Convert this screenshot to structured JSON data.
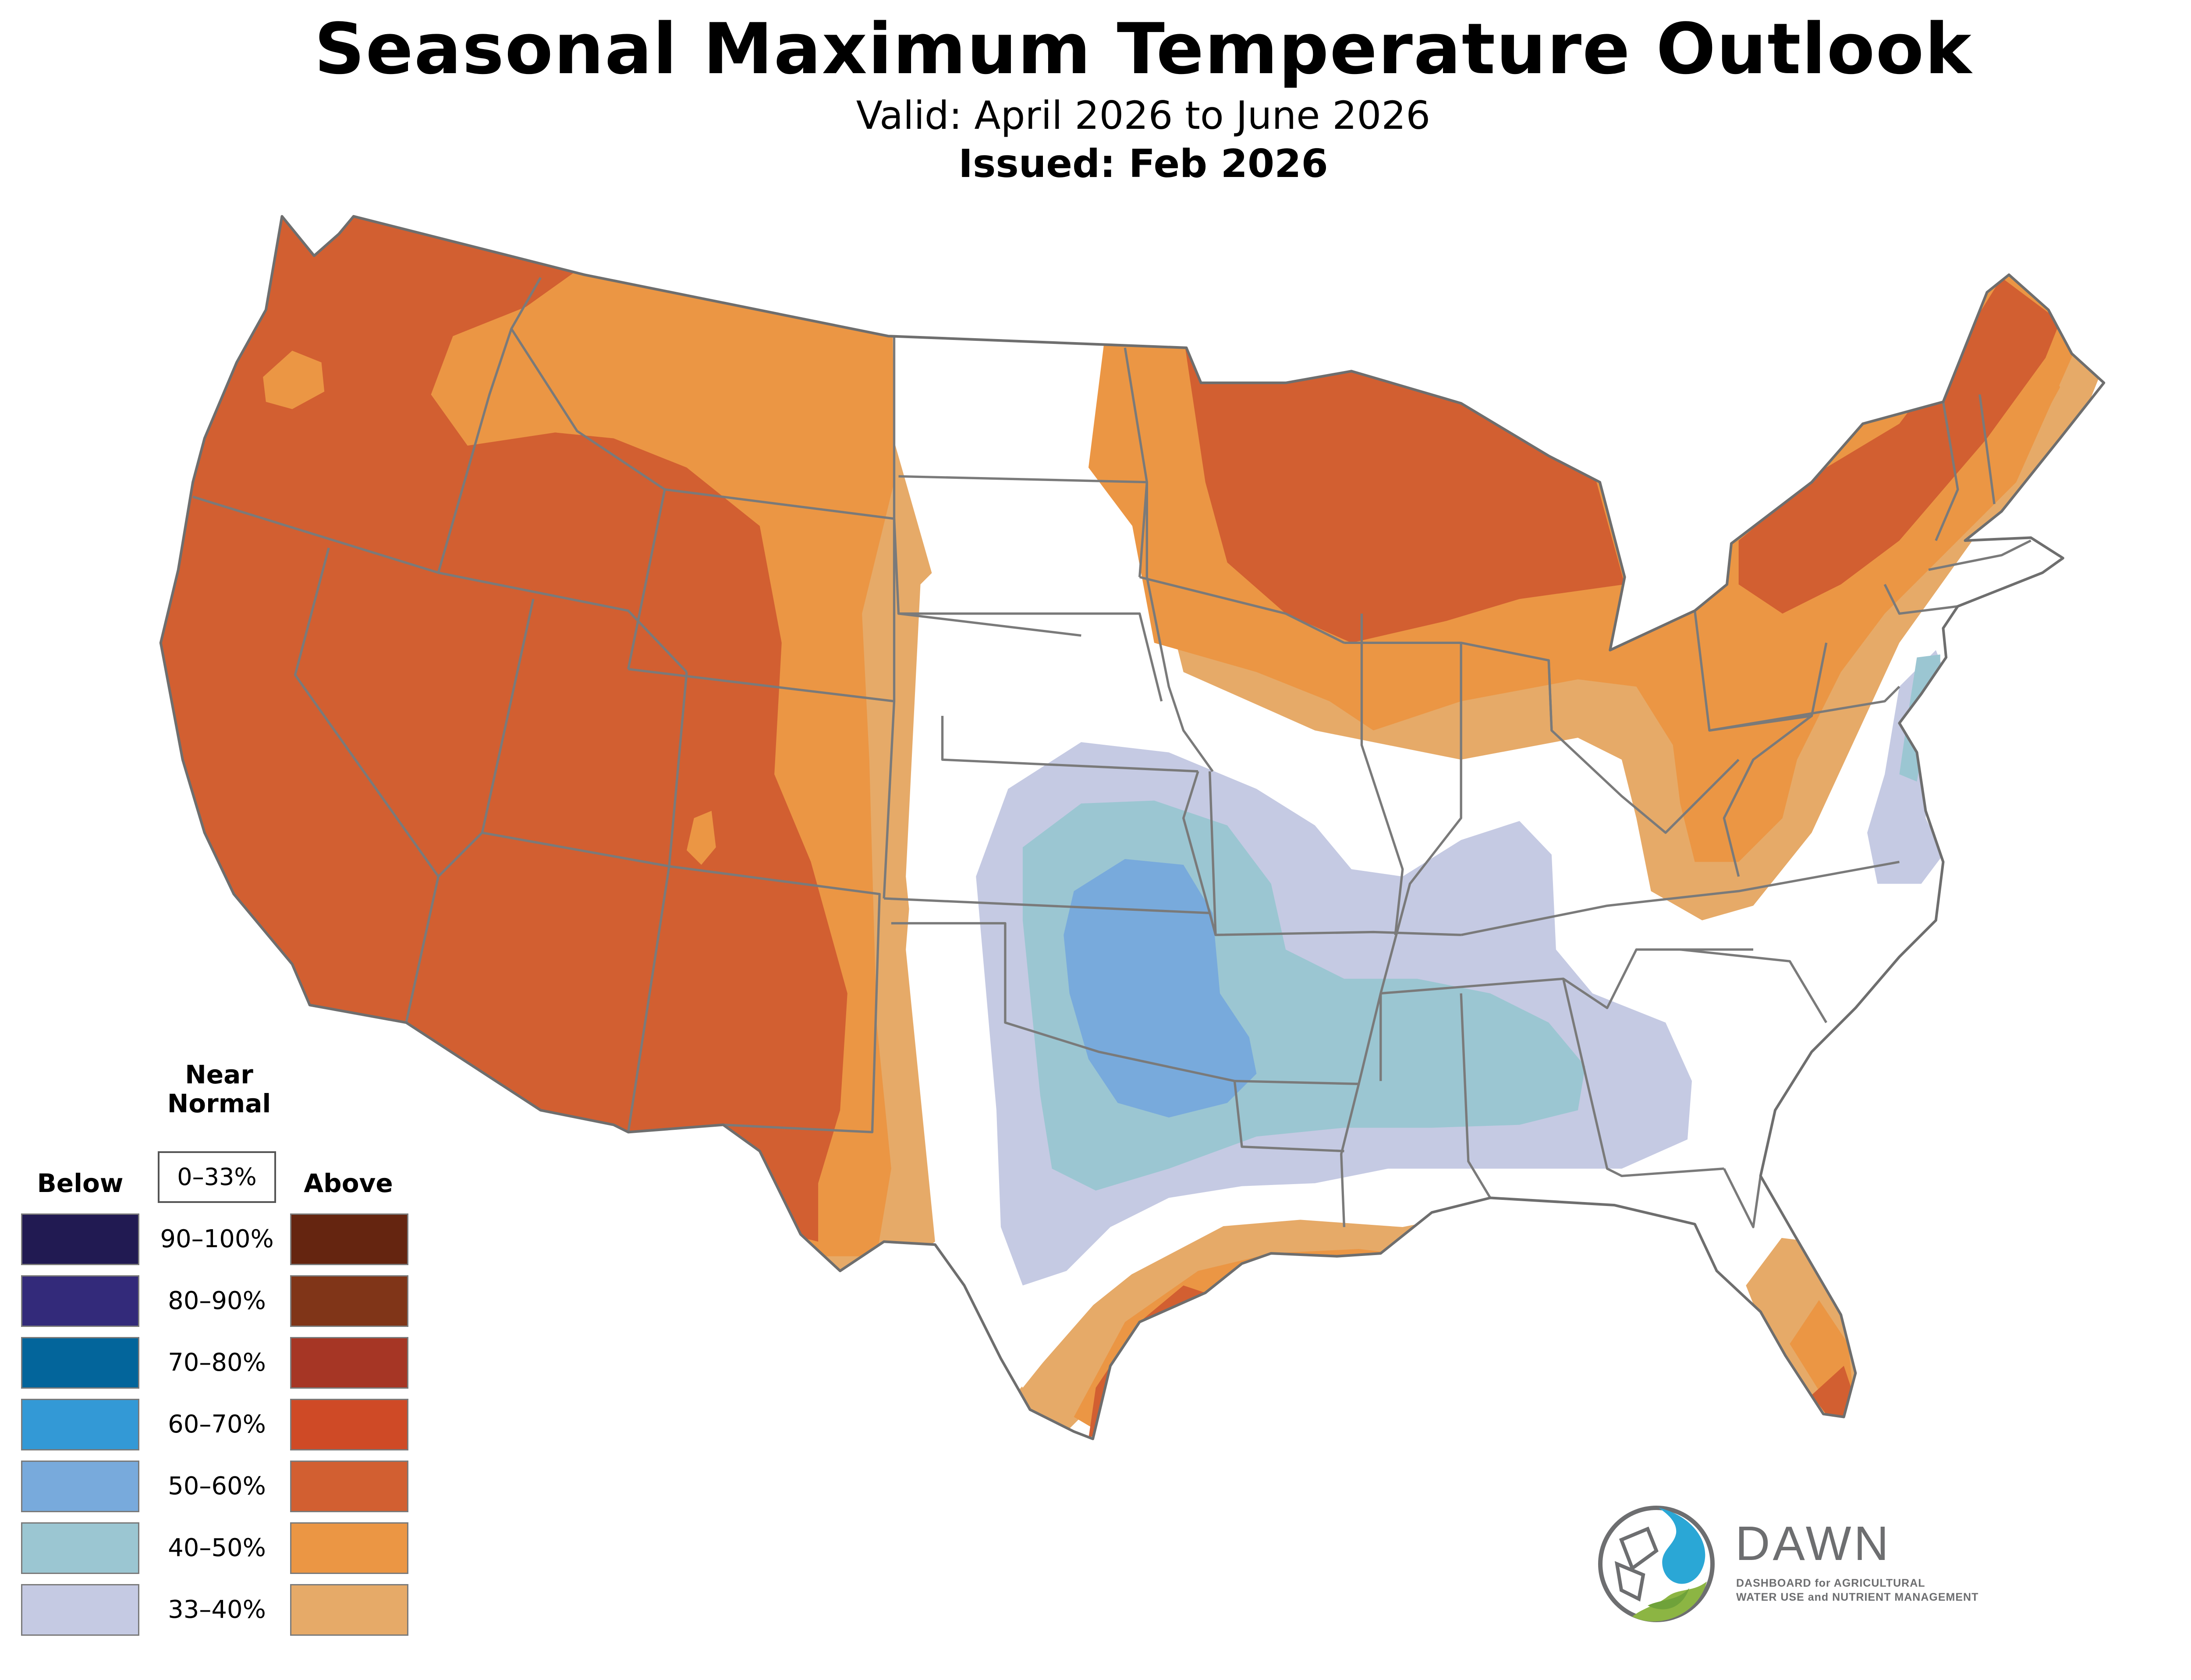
{
  "title": "Seasonal Maximum Temperature Outlook",
  "valid": "Valid: April 2026 to June 2026",
  "issued": "Issued: Feb 2026",
  "legend": {
    "below_heading": "Below",
    "above_heading": "Above",
    "near_heading": "Near\nNormal",
    "near_range": "0–33%",
    "ranges": [
      "90–100%",
      "80–90%",
      "70–80%",
      "60–70%",
      "50–60%",
      "40–50%",
      "33–40%"
    ],
    "below_colors": [
      "#211a52",
      "#332a7a",
      "#03659b",
      "#3399d6",
      "#78aadc",
      "#9bc6d2",
      "#c5cae3"
    ],
    "above_colors": [
      "#652510",
      "#803518",
      "#a63625",
      "#cf4a26",
      "#d25f31",
      "#eb9644",
      "#e6aa68"
    ]
  },
  "map": {
    "colors": {
      "above_50_60": "#d25f31",
      "above_40_50": "#eb9644",
      "above_33_40": "#e6aa68",
      "above_60_70": "#cf4a26",
      "below_33_40": "#c5cae3",
      "below_40_50": "#9bc6d2",
      "below_50_60": "#78aadc",
      "state_lines": "#7a7a7a",
      "near_normal": "#ffffff"
    }
  },
  "logo": {
    "name": "DAWN",
    "tagline_1": "DASHBOARD for AGRICULTURAL",
    "tagline_2": "WATER USE and NUTRIENT MANAGEMENT",
    "icon": "dawn-water-drop-logo"
  }
}
